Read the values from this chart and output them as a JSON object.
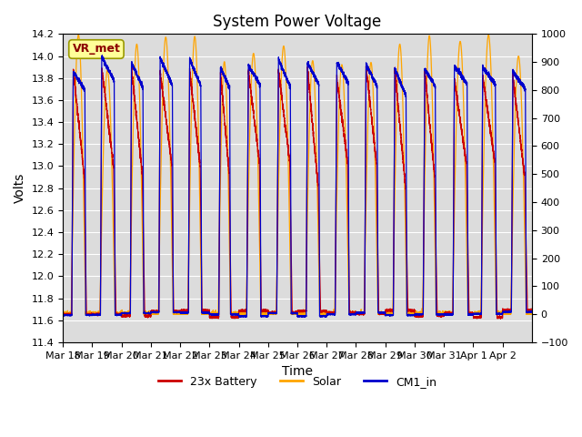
{
  "title": "System Power Voltage",
  "ylabel_left": "Volts",
  "xlabel": "Time",
  "ylim_left": [
    11.4,
    14.2
  ],
  "ylim_right": [
    -100,
    1000
  ],
  "yticks_left": [
    11.4,
    11.6,
    11.8,
    12.0,
    12.2,
    12.4,
    12.6,
    12.8,
    13.0,
    13.2,
    13.4,
    13.6,
    13.8,
    14.0,
    14.2
  ],
  "yticks_right": [
    -100,
    0,
    100,
    200,
    300,
    400,
    500,
    600,
    700,
    800,
    900,
    1000
  ],
  "xtick_labels": [
    "Mar 18",
    "Mar 19",
    "Mar 20",
    "Mar 21",
    "Mar 22",
    "Mar 23",
    "Mar 24",
    "Mar 25",
    "Mar 26",
    "Mar 27",
    "Mar 28",
    "Mar 29",
    "Mar 30",
    "Mar 31",
    "Apr 1",
    "Apr 2"
  ],
  "color_battery": "#CC0000",
  "color_solar": "#FFA500",
  "color_cm1": "#0000CC",
  "legend_labels": [
    "23x Battery",
    "Solar",
    "CM1_in"
  ],
  "vr_met_label": "VR_met",
  "vr_met_color": "#8B0000",
  "vr_met_box_color": "#FFFF99",
  "background_color": "#DCDCDC",
  "grid_color": "#FFFFFF",
  "title_fontsize": 12,
  "axis_fontsize": 10,
  "tick_fontsize": 8,
  "n_days": 16
}
